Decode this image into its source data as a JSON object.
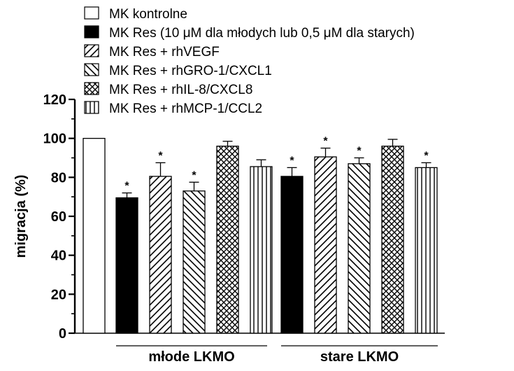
{
  "chart_data": {
    "type": "bar",
    "ylabel": "migracja (%)",
    "ylim": [
      0,
      120
    ],
    "yticks": [
      0,
      20,
      40,
      60,
      80,
      100,
      120
    ],
    "legend_position": "top",
    "control": {
      "name": "MK kontrolne",
      "value": 100,
      "pattern": "white"
    },
    "groups": [
      {
        "label": "młode LKMO"
      },
      {
        "label": "stare LKMO"
      }
    ],
    "series": [
      {
        "name": "MK Res (10 μM dla młodych lub 0,5 μM dla starych)",
        "pattern": "black",
        "values": [
          69.5,
          80.5
        ],
        "errors": [
          2.5,
          4.5
        ],
        "significant": [
          true,
          true
        ]
      },
      {
        "name": "MK Res + rhVEGF",
        "pattern": "diag-right",
        "values": [
          80.5,
          90.5
        ],
        "errors": [
          7,
          4.5
        ],
        "significant": [
          true,
          true
        ]
      },
      {
        "name": "MK Res + rhGRO-1/CXCL1",
        "pattern": "diag-left",
        "values": [
          73,
          87
        ],
        "errors": [
          4.5,
          3
        ],
        "significant": [
          true,
          true
        ]
      },
      {
        "name": "MK Res + rhIL-8/CXCL8",
        "pattern": "cross",
        "values": [
          96,
          96
        ],
        "errors": [
          2.5,
          3.5
        ],
        "significant": [
          false,
          false
        ]
      },
      {
        "name": "MK Res + rhMCP-1/CCL2",
        "pattern": "vertical",
        "values": [
          85.5,
          85
        ],
        "errors": [
          3.5,
          2.5
        ],
        "significant": [
          false,
          true
        ]
      }
    ],
    "significance_marker": "*"
  }
}
